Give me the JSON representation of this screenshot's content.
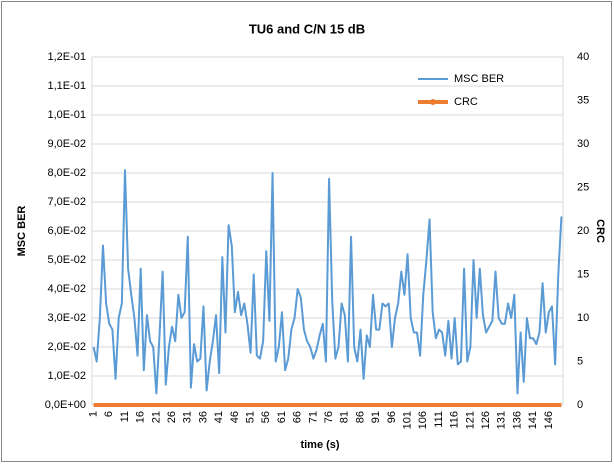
{
  "chart_data": {
    "type": "line",
    "title": "TU6 and C/N 15 dB",
    "x_label": "time (s)",
    "y_label": "MSC BER",
    "y2_label": "CRC",
    "categories": [
      "1",
      null,
      null,
      null,
      null,
      "6",
      null,
      null,
      null,
      null,
      "11",
      null,
      null,
      null,
      null,
      "16",
      null,
      null,
      null,
      null,
      "21",
      null,
      null,
      null,
      null,
      "26",
      null,
      null,
      null,
      null,
      "31",
      null,
      null,
      null,
      null,
      "36",
      null,
      null,
      null,
      null,
      "41",
      null,
      null,
      null,
      null,
      "46",
      null,
      null,
      null,
      null,
      "51",
      null,
      null,
      null,
      null,
      "56",
      null,
      null,
      null,
      null,
      "61",
      null,
      null,
      null,
      null,
      "66",
      null,
      null,
      null,
      null,
      "71",
      null,
      null,
      null,
      null,
      "76",
      null,
      null,
      null,
      null,
      "81",
      null,
      null,
      null,
      null,
      "86",
      null,
      null,
      null,
      null,
      "91",
      null,
      null,
      null,
      null,
      "96",
      null,
      null,
      null,
      null,
      "101",
      null,
      null,
      null,
      null,
      "106",
      null,
      null,
      null,
      null,
      "111",
      null,
      null,
      null,
      null,
      "116",
      null,
      null,
      null,
      null,
      "121",
      null,
      null,
      null,
      null,
      "126",
      null,
      null,
      null,
      null,
      "131",
      null,
      null,
      null,
      null,
      "136",
      null,
      null,
      null,
      null,
      "141",
      null,
      null,
      null,
      null,
      "146",
      null,
      null,
      null,
      null
    ],
    "series": [
      {
        "name": "MSC BER",
        "color": "#5b9bd5",
        "values": [
          0.02,
          0.015,
          0.03,
          0.055,
          0.035,
          0.028,
          0.026,
          0.009,
          0.03,
          0.035,
          0.081,
          0.047,
          0.038,
          0.03,
          0.017,
          0.047,
          0.012,
          0.031,
          0.022,
          0.02,
          0.004,
          0.024,
          0.046,
          0.007,
          0.02,
          0.027,
          0.022,
          0.038,
          0.03,
          0.032,
          0.058,
          0.006,
          0.021,
          0.015,
          0.016,
          0.034,
          0.005,
          0.015,
          0.022,
          0.031,
          0.011,
          0.051,
          0.025,
          0.062,
          0.055,
          0.032,
          0.039,
          0.031,
          0.035,
          0.028,
          0.018,
          0.045,
          0.017,
          0.016,
          0.022,
          0.053,
          0.029,
          0.08,
          0.015,
          0.02,
          0.032,
          0.012,
          0.016,
          0.026,
          0.03,
          0.04,
          0.037,
          0.026,
          0.022,
          0.02,
          0.016,
          0.019,
          0.024,
          0.028,
          0.015,
          0.078,
          0.036,
          0.016,
          0.02,
          0.035,
          0.031,
          0.015,
          0.058,
          0.02,
          0.015,
          0.026,
          0.009,
          0.024,
          0.02,
          0.038,
          0.026,
          0.026,
          0.035,
          0.034,
          0.035,
          0.02,
          0.03,
          0.035,
          0.046,
          0.038,
          0.052,
          0.03,
          0.025,
          0.025,
          0.017,
          0.038,
          0.05,
          0.064,
          0.032,
          0.023,
          0.026,
          0.025,
          0.017,
          0.029,
          0.016,
          0.03,
          0.014,
          0.015,
          0.047,
          0.015,
          0.02,
          0.05,
          0.03,
          0.047,
          0.031,
          0.025,
          0.027,
          0.029,
          0.046,
          0.03,
          0.028,
          0.028,
          0.035,
          0.03,
          0.038,
          0.004,
          0.025,
          0.008,
          0.03,
          0.023,
          0.023,
          0.021,
          0.025,
          0.042,
          0.025,
          0.032,
          0.034,
          0.014,
          0.045,
          0.065
        ]
      },
      {
        "name": "CRC",
        "color": "#ed7d31",
        "axis": "y2",
        "values": [
          0,
          0,
          0,
          0,
          0,
          0,
          0,
          0,
          0,
          0,
          0,
          0,
          0,
          0,
          0,
          0,
          0,
          0,
          0,
          0,
          0,
          0,
          0,
          0,
          0,
          0,
          0,
          0,
          0,
          0,
          0,
          0,
          0,
          0,
          0,
          0,
          0,
          0,
          0,
          0,
          0,
          0,
          0,
          0,
          0,
          0,
          0,
          0,
          0,
          0,
          0,
          0,
          0,
          0,
          0,
          0,
          0,
          0,
          0,
          0,
          0,
          0,
          0,
          0,
          0,
          0,
          0,
          0,
          0,
          0,
          0,
          0,
          0,
          0,
          0,
          0,
          0,
          0,
          0,
          0,
          0,
          0,
          0,
          0,
          0,
          0,
          0,
          0,
          0,
          0,
          0,
          0,
          0,
          0,
          0,
          0,
          0,
          0,
          0,
          0,
          0,
          0,
          0,
          0,
          0,
          0,
          0,
          0,
          0,
          0,
          0,
          0,
          0,
          0,
          0,
          0,
          0,
          0,
          0,
          0,
          0,
          0,
          0,
          0,
          0,
          0,
          0,
          0,
          0,
          0,
          0,
          0,
          0,
          0,
          0,
          0,
          0,
          0,
          0,
          0,
          0,
          0,
          0,
          0,
          0,
          0,
          0,
          0,
          0,
          0
        ]
      }
    ],
    "ylim": [
      0,
      0.12
    ],
    "yticks": [
      {
        "value": 0,
        "label": "0,0E+00"
      },
      {
        "value": 0.01,
        "label": "1,0E-02"
      },
      {
        "value": 0.02,
        "label": "2,0E-02"
      },
      {
        "value": 0.03,
        "label": "3,0E-02"
      },
      {
        "value": 0.04,
        "label": "4,0E-02"
      },
      {
        "value": 0.05,
        "label": "5,0E-02"
      },
      {
        "value": 0.06,
        "label": "6,0E-02"
      },
      {
        "value": 0.07,
        "label": "7,0E-02"
      },
      {
        "value": 0.08,
        "label": "8,0E-02"
      },
      {
        "value": 0.09,
        "label": "9,0E-02"
      },
      {
        "value": 0.1,
        "label": "1,0E-01"
      },
      {
        "value": 0.11,
        "label": "1,1E-01"
      },
      {
        "value": 0.12,
        "label": "1,2E-01"
      }
    ],
    "y2lim": [
      0,
      40
    ],
    "y2ticks": [
      0,
      5,
      10,
      15,
      20,
      25,
      30,
      35,
      40
    ],
    "grid": true,
    "legend": "top-right"
  }
}
